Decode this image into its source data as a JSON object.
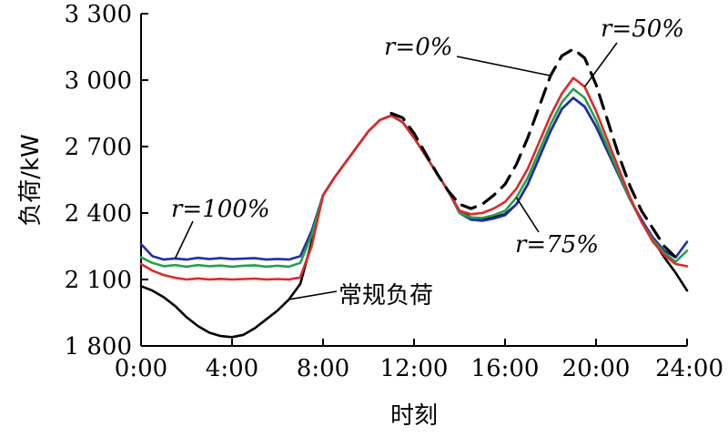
{
  "chart_data": {
    "type": "line",
    "xlabel": "时刻",
    "ylabel": "负荷/kW",
    "xlim": [
      0,
      24
    ],
    "ylim": [
      1800,
      3300
    ],
    "x_ticks": [
      0,
      4,
      8,
      12,
      16,
      20,
      24
    ],
    "x_tick_labels": [
      "0:00",
      "4:00",
      "8:00",
      "12:00",
      "16:00",
      "20:00",
      "24:00"
    ],
    "y_ticks": [
      1800,
      2100,
      2400,
      2700,
      3000,
      3300
    ],
    "y_tick_labels": [
      "1 800",
      "2 100",
      "2 400",
      "2 700",
      "3 000",
      "3 300"
    ],
    "grid": false,
    "colors": {
      "r100": "#1f2fa8",
      "r75": "#22a24a",
      "r50": "#e02828",
      "regular": "#000000",
      "r0": "#000000"
    },
    "series": [
      {
        "key": "regular",
        "style": "solid",
        "x": [
          0,
          0.5,
          1,
          1.5,
          2,
          2.5,
          3,
          3.5,
          4,
          4.5,
          5,
          5.5,
          6,
          6.5,
          7,
          7.5,
          8,
          8.5,
          9,
          9.5,
          10,
          10.5,
          11,
          11.5,
          12,
          12.5,
          13,
          13.5,
          14,
          14.5,
          15,
          15.5,
          16,
          16.5,
          17,
          17.5,
          18,
          18.5,
          19,
          19.5,
          20,
          20.5,
          21,
          21.5,
          22,
          22.5,
          23,
          23.5,
          24
        ],
        "y": [
          2070,
          2050,
          2020,
          1980,
          1930,
          1890,
          1860,
          1845,
          1840,
          1850,
          1880,
          1920,
          1960,
          2010,
          2080,
          2270,
          2480,
          2560,
          2630,
          2700,
          2770,
          2820,
          2840,
          2810,
          2740,
          2660,
          2580,
          2500,
          2410,
          2380,
          2375,
          2380,
          2395,
          2440,
          2530,
          2650,
          2770,
          2870,
          2920,
          2880,
          2790,
          2680,
          2570,
          2460,
          2370,
          2280,
          2200,
          2130,
          2050
        ]
      },
      {
        "key": "r100",
        "style": "solid",
        "x": [
          0,
          0.5,
          1,
          1.5,
          2,
          2.5,
          3,
          3.5,
          4,
          4.5,
          5,
          5.5,
          6,
          6.5,
          7,
          7.5,
          8,
          8.5,
          9,
          9.5,
          10,
          10.5,
          11,
          11.5,
          12,
          12.5,
          13,
          13.5,
          14,
          14.5,
          15,
          15.5,
          16,
          16.5,
          17,
          17.5,
          18,
          18.5,
          19,
          19.5,
          20,
          20.5,
          21,
          21.5,
          22,
          22.5,
          23,
          23.5,
          24
        ],
        "y": [
          2260,
          2205,
          2190,
          2195,
          2190,
          2198,
          2192,
          2197,
          2192,
          2194,
          2196,
          2190,
          2193,
          2190,
          2205,
          2320,
          2480,
          2560,
          2630,
          2700,
          2770,
          2820,
          2840,
          2810,
          2740,
          2660,
          2580,
          2500,
          2400,
          2370,
          2365,
          2375,
          2390,
          2440,
          2530,
          2650,
          2770,
          2870,
          2920,
          2880,
          2790,
          2680,
          2570,
          2460,
          2370,
          2290,
          2230,
          2200,
          2270
        ]
      },
      {
        "key": "r75",
        "style": "solid",
        "x": [
          0,
          0.5,
          1,
          1.5,
          2,
          2.5,
          3,
          3.5,
          4,
          4.5,
          5,
          5.5,
          6,
          6.5,
          7,
          7.5,
          8,
          8.5,
          9,
          9.5,
          10,
          10.5,
          11,
          11.5,
          12,
          12.5,
          13,
          13.5,
          14,
          14.5,
          15,
          15.5,
          16,
          16.5,
          17,
          17.5,
          18,
          18.5,
          19,
          19.5,
          20,
          20.5,
          21,
          21.5,
          22,
          22.5,
          23,
          23.5,
          24
        ],
        "y": [
          2200,
          2175,
          2160,
          2165,
          2158,
          2165,
          2160,
          2163,
          2158,
          2162,
          2164,
          2158,
          2162,
          2158,
          2175,
          2300,
          2480,
          2560,
          2630,
          2700,
          2770,
          2820,
          2840,
          2810,
          2740,
          2660,
          2580,
          2500,
          2400,
          2380,
          2378,
          2390,
          2410,
          2470,
          2560,
          2680,
          2800,
          2900,
          2960,
          2920,
          2820,
          2700,
          2580,
          2460,
          2360,
          2280,
          2220,
          2180,
          2230
        ]
      },
      {
        "key": "r50",
        "style": "solid",
        "x": [
          0,
          0.5,
          1,
          1.5,
          2,
          2.5,
          3,
          3.5,
          4,
          4.5,
          5,
          5.5,
          6,
          6.5,
          7,
          7.5,
          8,
          8.5,
          9,
          9.5,
          10,
          10.5,
          11,
          11.5,
          12,
          12.5,
          13,
          13.5,
          14,
          14.5,
          15,
          15.5,
          16,
          16.5,
          17,
          17.5,
          18,
          18.5,
          19,
          19.5,
          20,
          20.5,
          21,
          21.5,
          22,
          22.5,
          23,
          23.5,
          24
        ],
        "y": [
          2170,
          2140,
          2120,
          2108,
          2100,
          2105,
          2100,
          2103,
          2100,
          2102,
          2104,
          2100,
          2102,
          2100,
          2110,
          2250,
          2480,
          2560,
          2630,
          2700,
          2770,
          2820,
          2840,
          2810,
          2740,
          2660,
          2580,
          2500,
          2410,
          2395,
          2400,
          2420,
          2450,
          2510,
          2600,
          2720,
          2840,
          2940,
          3010,
          2970,
          2860,
          2730,
          2600,
          2470,
          2360,
          2270,
          2210,
          2170,
          2160
        ]
      },
      {
        "key": "r0",
        "style": "dashed",
        "x": [
          11,
          11.5,
          12,
          12.5,
          13,
          13.5,
          14,
          14.5,
          15,
          15.5,
          16,
          16.5,
          17,
          17.5,
          18,
          18.5,
          19,
          19.5,
          20,
          20.5,
          21,
          21.5,
          22,
          22.5,
          23,
          23.5
        ],
        "y": [
          2850,
          2830,
          2760,
          2670,
          2580,
          2500,
          2440,
          2420,
          2440,
          2480,
          2530,
          2620,
          2740,
          2880,
          3020,
          3110,
          3140,
          3100,
          2980,
          2820,
          2660,
          2520,
          2410,
          2330,
          2250,
          2200
        ]
      }
    ],
    "annotations": [
      {
        "text": "r=100%",
        "target": "r100"
      },
      {
        "text": "r=0%",
        "target": "r0"
      },
      {
        "text": "r=50%",
        "target": "r50"
      },
      {
        "text": "r=75%",
        "target": "r75"
      },
      {
        "text": "常规负荷",
        "target": "regular"
      }
    ]
  }
}
